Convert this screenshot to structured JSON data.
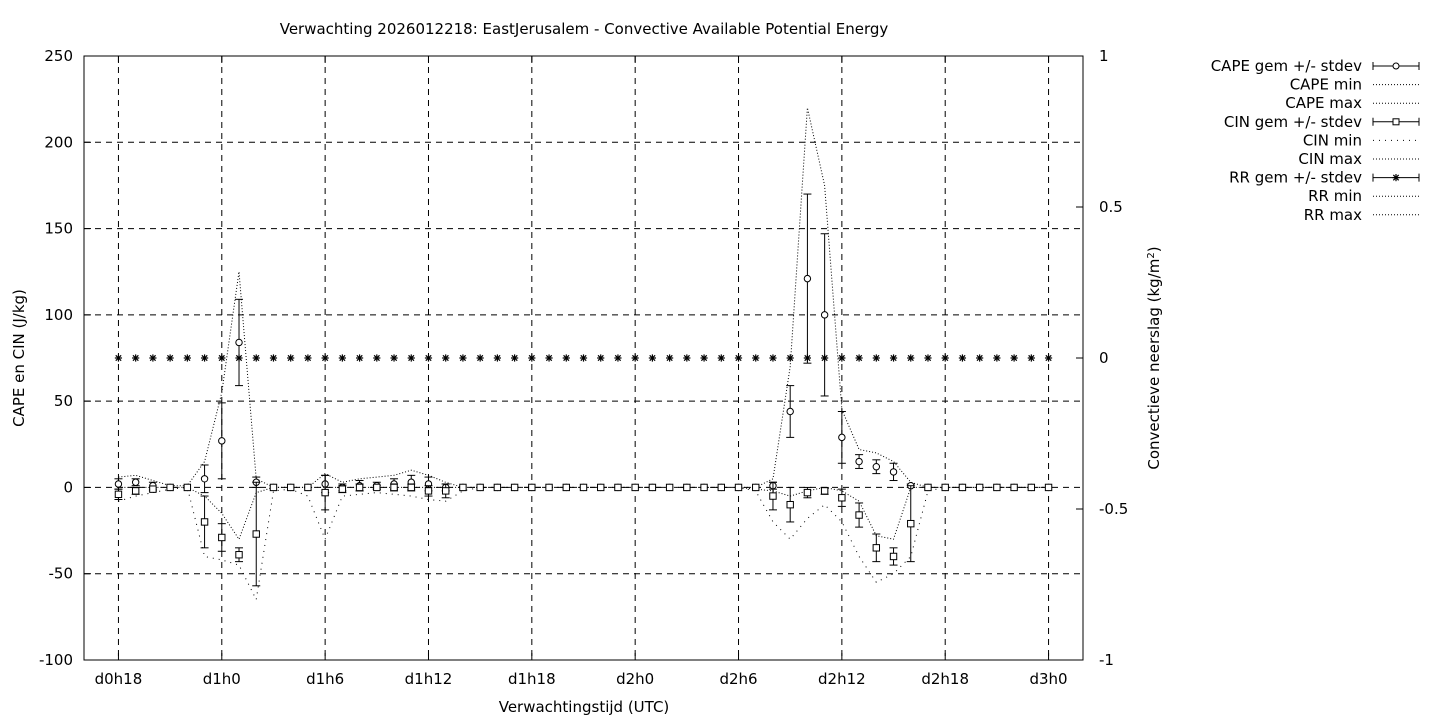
{
  "chart_data": {
    "type": "line",
    "title": "Verwachting 2026012218: EastJerusalem - Convective Available Potential Energy",
    "xlabel": "Verwachtingstijd (UTC)",
    "ylabel": "CAPE en CIN (J/kg)",
    "y2label_main": "Convectieve neerslag (kg/m",
    "y2label_sup": "2",
    "y2label_end": ")",
    "x_tick_labels": [
      "d0h18",
      "d1h0",
      "d1h6",
      "d1h12",
      "d1h18",
      "d2h0",
      "d2h6",
      "d2h12",
      "d2h18",
      "d3h0"
    ],
    "x_tick_hours": [
      0,
      6,
      12,
      18,
      24,
      30,
      36,
      42,
      48,
      54
    ],
    "xlim": [
      -2,
      56
    ],
    "y_ticks": [
      "-100",
      "-50",
      "0",
      "50",
      "100",
      "150",
      "200",
      "250"
    ],
    "ylim": [
      -100,
      250
    ],
    "y2_ticks": [
      "-1",
      "-0.5",
      "0",
      "0.5",
      "1"
    ],
    "y2lim": [
      -1,
      1
    ],
    "grid": true,
    "legend_position": "outside-right",
    "legend": [
      {
        "label": "CAPE gem +/- stdev",
        "style": "errorbar",
        "marker": "circle"
      },
      {
        "label": "CAPE min",
        "style": "dotted"
      },
      {
        "label": "CAPE max",
        "style": "dotted"
      },
      {
        "label": "CIN gem +/- stdev",
        "style": "errorbar",
        "marker": "square"
      },
      {
        "label": "CIN min",
        "style": "dotted-sparse"
      },
      {
        "label": "CIN max",
        "style": "dotted"
      },
      {
        "label": "RR gem +/- stdev",
        "style": "errorbar",
        "marker": "star"
      },
      {
        "label": "RR min",
        "style": "dotted"
      },
      {
        "label": "RR max",
        "style": "dotted"
      }
    ],
    "cape_mean": [
      [
        0,
        2,
        3
      ],
      [
        1,
        3,
        2
      ],
      [
        2,
        1,
        2
      ],
      [
        3,
        0,
        0
      ],
      [
        4,
        0,
        0
      ],
      [
        5,
        5,
        8
      ],
      [
        6,
        27,
        22
      ],
      [
        7,
        84,
        25
      ],
      [
        8,
        3,
        3
      ],
      [
        9,
        0,
        0
      ],
      [
        10,
        0,
        0
      ],
      [
        11,
        0,
        0
      ],
      [
        12,
        2,
        5
      ],
      [
        13,
        0,
        2
      ],
      [
        14,
        1,
        3
      ],
      [
        15,
        1,
        2
      ],
      [
        16,
        2,
        3
      ],
      [
        17,
        3,
        4
      ],
      [
        18,
        2,
        4
      ],
      [
        19,
        0,
        2
      ],
      [
        20,
        0,
        0
      ],
      [
        21,
        0,
        0
      ],
      [
        22,
        0,
        0
      ],
      [
        23,
        0,
        0
      ],
      [
        24,
        0,
        0
      ],
      [
        25,
        0,
        0
      ],
      [
        26,
        0,
        0
      ],
      [
        27,
        0,
        0
      ],
      [
        28,
        0,
        0
      ],
      [
        29,
        0,
        0
      ],
      [
        30,
        0,
        0
      ],
      [
        31,
        0,
        0
      ],
      [
        32,
        0,
        0
      ],
      [
        33,
        0,
        0
      ],
      [
        34,
        0,
        0
      ],
      [
        35,
        0,
        0
      ],
      [
        36,
        0,
        0
      ],
      [
        37,
        0,
        0
      ],
      [
        38,
        1,
        2
      ],
      [
        39,
        44,
        15
      ],
      [
        40,
        121,
        49
      ],
      [
        41,
        100,
        47
      ],
      [
        42,
        29,
        15
      ],
      [
        43,
        15,
        4
      ],
      [
        44,
        12,
        4
      ],
      [
        45,
        9,
        5
      ],
      [
        46,
        1,
        1
      ],
      [
        47,
        0,
        0
      ],
      [
        48,
        0,
        0
      ],
      [
        49,
        0,
        0
      ],
      [
        50,
        0,
        0
      ],
      [
        51,
        0,
        0
      ],
      [
        52,
        0,
        0
      ],
      [
        53,
        0,
        0
      ],
      [
        54,
        0,
        0
      ]
    ],
    "cape_max": [
      [
        0,
        6
      ],
      [
        1,
        7
      ],
      [
        2,
        4
      ],
      [
        3,
        1
      ],
      [
        4,
        1
      ],
      [
        5,
        15
      ],
      [
        6,
        55
      ],
      [
        7,
        125
      ],
      [
        8,
        5
      ],
      [
        9,
        0
      ],
      [
        10,
        0
      ],
      [
        11,
        0
      ],
      [
        12,
        8
      ],
      [
        13,
        3
      ],
      [
        14,
        5
      ],
      [
        15,
        6
      ],
      [
        16,
        7
      ],
      [
        17,
        10
      ],
      [
        18,
        7
      ],
      [
        19,
        3
      ],
      [
        20,
        0
      ],
      [
        21,
        0
      ],
      [
        22,
        0
      ],
      [
        36,
        0
      ],
      [
        37,
        0
      ],
      [
        38,
        5
      ],
      [
        39,
        70
      ],
      [
        40,
        220
      ],
      [
        41,
        175
      ],
      [
        42,
        45
      ],
      [
        43,
        22
      ],
      [
        44,
        20
      ],
      [
        45,
        15
      ],
      [
        46,
        3
      ],
      [
        47,
        0
      ],
      [
        54,
        0
      ]
    ],
    "cin_mean": [
      [
        0,
        -4,
        3
      ],
      [
        1,
        -2,
        2
      ],
      [
        2,
        -1,
        1
      ],
      [
        3,
        0,
        0
      ],
      [
        4,
        0,
        0
      ],
      [
        5,
        -20,
        15
      ],
      [
        6,
        -29,
        8
      ],
      [
        7,
        -39,
        4
      ],
      [
        8,
        -27,
        30
      ],
      [
        9,
        0,
        0
      ],
      [
        10,
        0,
        0
      ],
      [
        11,
        0,
        0
      ],
      [
        12,
        -3,
        10
      ],
      [
        13,
        -1,
        2
      ],
      [
        14,
        0,
        2
      ],
      [
        15,
        0,
        1
      ],
      [
        16,
        0,
        2
      ],
      [
        17,
        0,
        2
      ],
      [
        18,
        -2,
        3
      ],
      [
        19,
        -2,
        4
      ],
      [
        20,
        0,
        0
      ],
      [
        21,
        0,
        0
      ],
      [
        22,
        0,
        0
      ],
      [
        23,
        0,
        0
      ],
      [
        24,
        0,
        0
      ],
      [
        25,
        0,
        0
      ],
      [
        26,
        0,
        0
      ],
      [
        27,
        0,
        0
      ],
      [
        28,
        0,
        0
      ],
      [
        29,
        0,
        0
      ],
      [
        30,
        0,
        0
      ],
      [
        31,
        0,
        0
      ],
      [
        32,
        0,
        0
      ],
      [
        33,
        0,
        0
      ],
      [
        34,
        0,
        0
      ],
      [
        35,
        0,
        0
      ],
      [
        36,
        0,
        0
      ],
      [
        37,
        0,
        0
      ],
      [
        38,
        -5,
        8
      ],
      [
        39,
        -10,
        10
      ],
      [
        40,
        -3,
        3
      ],
      [
        41,
        -2,
        2
      ],
      [
        42,
        -6,
        5
      ],
      [
        43,
        -16,
        7
      ],
      [
        44,
        -35,
        8
      ],
      [
        45,
        -40,
        5
      ],
      [
        46,
        -21,
        22
      ],
      [
        47,
        0,
        0
      ],
      [
        48,
        0,
        0
      ],
      [
        49,
        0,
        0
      ],
      [
        50,
        0,
        0
      ],
      [
        51,
        0,
        0
      ],
      [
        52,
        0,
        0
      ],
      [
        53,
        0,
        0
      ],
      [
        54,
        0,
        0
      ]
    ],
    "cin_min": [
      [
        0,
        -8
      ],
      [
        1,
        -5
      ],
      [
        2,
        -3
      ],
      [
        3,
        -1
      ],
      [
        4,
        0
      ],
      [
        5,
        -40
      ],
      [
        6,
        -42
      ],
      [
        7,
        -45
      ],
      [
        8,
        -65
      ],
      [
        9,
        -2
      ],
      [
        10,
        -1
      ],
      [
        11,
        -5
      ],
      [
        12,
        -30
      ],
      [
        13,
        -5
      ],
      [
        14,
        -4
      ],
      [
        15,
        -3
      ],
      [
        16,
        -4
      ],
      [
        17,
        -5
      ],
      [
        18,
        -7
      ],
      [
        19,
        -8
      ],
      [
        20,
        -2
      ],
      [
        21,
        0
      ],
      [
        36,
        0
      ],
      [
        37,
        -2
      ],
      [
        38,
        -20
      ],
      [
        39,
        -30
      ],
      [
        40,
        -18
      ],
      [
        41,
        -10
      ],
      [
        42,
        -20
      ],
      [
        43,
        -40
      ],
      [
        44,
        -55
      ],
      [
        45,
        -50
      ],
      [
        46,
        -40
      ],
      [
        47,
        -2
      ],
      [
        48,
        0
      ],
      [
        54,
        0
      ]
    ],
    "cin_max": [
      [
        0,
        0
      ],
      [
        4,
        0
      ],
      [
        5,
        -5
      ],
      [
        6,
        -15
      ],
      [
        7,
        -30
      ],
      [
        8,
        -3
      ],
      [
        9,
        0
      ],
      [
        36,
        0
      ],
      [
        38,
        -2
      ],
      [
        39,
        -5
      ],
      [
        40,
        -2
      ],
      [
        41,
        0
      ],
      [
        42,
        -2
      ],
      [
        43,
        -8
      ],
      [
        44,
        -28
      ],
      [
        45,
        -30
      ],
      [
        46,
        0
      ],
      [
        54,
        0
      ]
    ],
    "rr_mean": [
      [
        0,
        0
      ],
      [
        1,
        0
      ],
      [
        2,
        0
      ],
      [
        3,
        0
      ],
      [
        4,
        0
      ],
      [
        5,
        0
      ],
      [
        6,
        0
      ],
      [
        7,
        0
      ],
      [
        8,
        0
      ],
      [
        9,
        0
      ],
      [
        10,
        0
      ],
      [
        11,
        0
      ],
      [
        12,
        0
      ],
      [
        13,
        0
      ],
      [
        14,
        0
      ],
      [
        15,
        0
      ],
      [
        16,
        0
      ],
      [
        17,
        0
      ],
      [
        18,
        0
      ],
      [
        19,
        0
      ],
      [
        20,
        0
      ],
      [
        21,
        0
      ],
      [
        22,
        0
      ],
      [
        23,
        0
      ],
      [
        24,
        0
      ],
      [
        25,
        0
      ],
      [
        26,
        0
      ],
      [
        27,
        0
      ],
      [
        28,
        0
      ],
      [
        29,
        0
      ],
      [
        30,
        0
      ],
      [
        31,
        0
      ],
      [
        32,
        0
      ],
      [
        33,
        0
      ],
      [
        34,
        0
      ],
      [
        35,
        0
      ],
      [
        36,
        0
      ],
      [
        37,
        0
      ],
      [
        38,
        0
      ],
      [
        39,
        0
      ],
      [
        40,
        0
      ],
      [
        41,
        0
      ],
      [
        42,
        0
      ],
      [
        43,
        0
      ],
      [
        44,
        0
      ],
      [
        45,
        0
      ],
      [
        46,
        0
      ],
      [
        47,
        0
      ],
      [
        48,
        0
      ],
      [
        49,
        0
      ],
      [
        50,
        0
      ],
      [
        51,
        0
      ],
      [
        52,
        0
      ],
      [
        53,
        0
      ],
      [
        54,
        0
      ]
    ]
  }
}
